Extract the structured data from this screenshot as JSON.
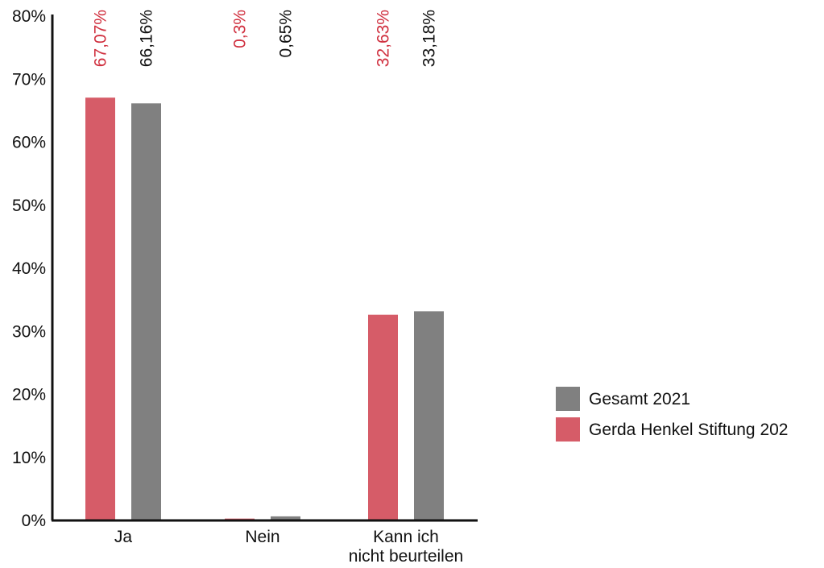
{
  "chart_data": {
    "type": "bar",
    "categories": [
      [
        "Ja"
      ],
      [
        "Nein"
      ],
      [
        "Kann ich",
        "nicht beurteilen"
      ]
    ],
    "series": [
      {
        "name": "Gerda Henkel Stiftung 202",
        "color": "#d65c68",
        "label_color": "#d0303f",
        "values": [
          67.07,
          0.3,
          32.63
        ],
        "labels": [
          "67,07%",
          "0,3%",
          "32,63%"
        ]
      },
      {
        "name": "Gesamt 2021",
        "color": "#808080",
        "label_color": "#111111",
        "values": [
          66.16,
          0.65,
          33.18
        ],
        "labels": [
          "66,16%",
          "0,65%",
          "33,18%"
        ]
      }
    ],
    "y_ticks": [
      0,
      10,
      20,
      30,
      40,
      50,
      60,
      70,
      80
    ],
    "y_tick_labels": [
      "0%",
      "10%",
      "20%",
      "30%",
      "40%",
      "50%",
      "60%",
      "70%",
      "80%"
    ],
    "ylim": [
      0,
      80
    ],
    "legend_position": "right",
    "legend_order": [
      "Gesamt 2021",
      "Gerda Henkel Stiftung 202"
    ],
    "grid": false
  }
}
